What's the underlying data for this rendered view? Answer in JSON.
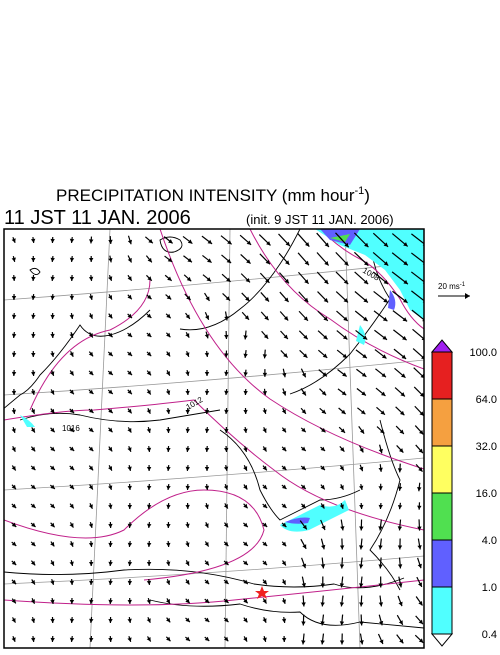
{
  "header": {
    "title": "PRECIPITATION INTENSITY (mm hour",
    "title_superscript": "-1",
    "title_end": ")",
    "valid_time": "11 JST 11 JAN. 2006",
    "init_time": "(init. 9 JST 11 JAN. 2006)"
  },
  "legend": {
    "reference_vector": "20 ms",
    "reference_superscript": "-1"
  },
  "colorbar": {
    "labels": [
      "100.0",
      "64.0",
      "32.0",
      "16.0",
      "4.0",
      "1.0",
      "0.4"
    ],
    "colors": [
      "#a020f0",
      "#e62020",
      "#f5a040",
      "#ffff60",
      "#50e050",
      "#6060ff",
      "#50ffff",
      "#ffffff"
    ]
  },
  "map": {
    "contour_labels": [
      "1008",
      "1012",
      "1016"
    ]
  }
}
